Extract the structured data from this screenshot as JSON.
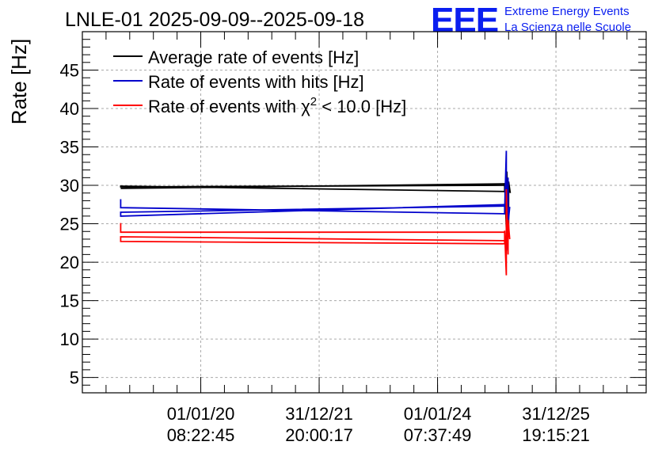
{
  "chart_data": {
    "type": "line",
    "title": "LNLE-01 2025-09-09--2025-09-18",
    "ylabel": "Rate [Hz]",
    "xlabel": "",
    "ylim": [
      3,
      50
    ],
    "xlim": [
      0,
      100
    ],
    "grid": true,
    "legend_position": "top-left",
    "x_ticks": [
      {
        "pos": 21.0,
        "date": "01/01/20",
        "time": "08:22:45"
      },
      {
        "pos": 42.0,
        "date": "31/12/21",
        "time": "20:00:17"
      },
      {
        "pos": 63.0,
        "date": "01/01/24",
        "time": "07:37:49"
      },
      {
        "pos": 84.0,
        "date": "31/12/25",
        "time": "19:15:21"
      }
    ],
    "y_ticks": [
      5,
      10,
      15,
      20,
      25,
      30,
      35,
      40,
      45
    ],
    "series": [
      {
        "name": "Average rate of events [Hz]",
        "color": "#000000",
        "x": [
          6.8,
          74.9,
          74.9,
          6.8,
          6.8,
          74.9,
          74.9,
          75.3,
          75.3,
          75.6,
          75.6,
          75.9
        ],
        "y": [
          29.6,
          30.2,
          30.0,
          29.8,
          29.9,
          29.2,
          30.3,
          22.5,
          31.8,
          24.0,
          30.5,
          29.0
        ]
      },
      {
        "name": "Rate of events with hits [Hz]",
        "color": "#0000cc",
        "x": [
          6.8,
          6.8,
          74.9,
          74.9,
          6.8,
          6.8,
          74.9,
          74.9,
          75.2,
          75.2,
          75.5,
          75.5,
          75.8
        ],
        "y": [
          28.2,
          27.1,
          26.3,
          27.5,
          26.0,
          26.5,
          27.3,
          26.8,
          34.5,
          21.5,
          31.0,
          25.0,
          27.2
        ]
      },
      {
        "name": "Rate of events with χ² < 10.0 [Hz]",
        "color": "#ff0000",
        "x": [
          6.8,
          6.8,
          74.9,
          74.9,
          6.8,
          6.8,
          74.9,
          74.9,
          75.2,
          75.2,
          75.5,
          75.5,
          75.8
        ],
        "y": [
          25.1,
          23.9,
          23.9,
          22.4,
          22.7,
          23.3,
          22.8,
          24.1,
          18.3,
          29.5,
          21.0,
          25.5,
          23.0
        ]
      }
    ]
  },
  "legend": [
    {
      "label": "Average rate of events [Hz]",
      "color": "#000000"
    },
    {
      "label": "Rate of events with hits [Hz]",
      "color": "#0000cc"
    },
    {
      "label_pre": "Rate of events with ",
      "label_chi": "χ",
      "label_sup": "2",
      "label_post": " < 10.0 [Hz]",
      "color": "#ff0000"
    }
  ],
  "logo": {
    "mark": "EEE",
    "line1": "Extreme Energy Events",
    "line2": "La Scienza nelle Scuole",
    "color": "#0a1ef0"
  }
}
